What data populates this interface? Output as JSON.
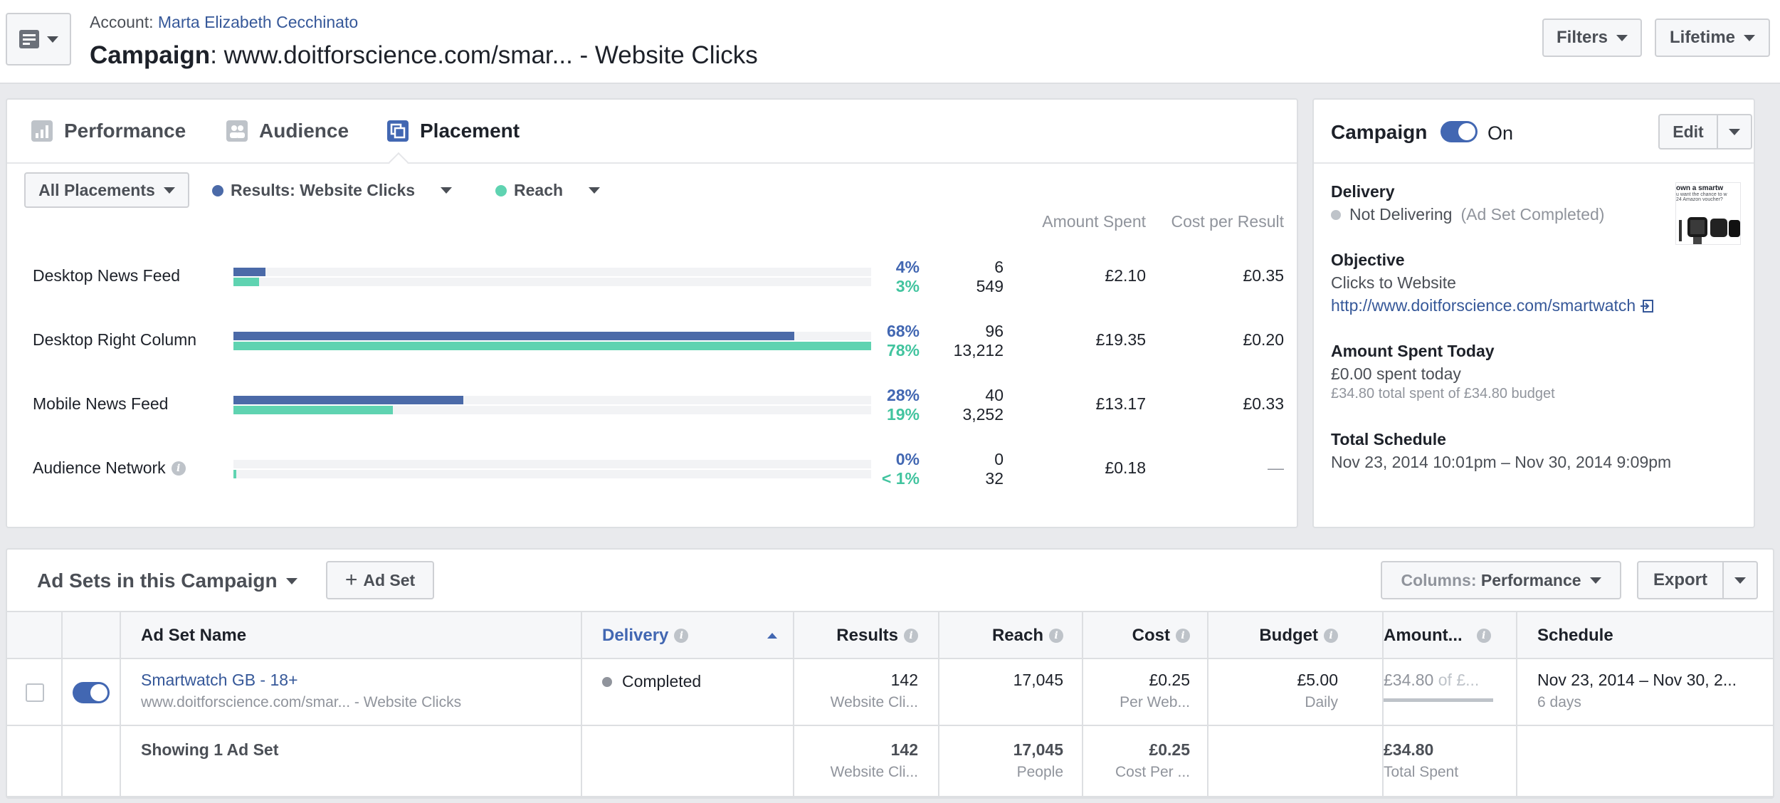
{
  "header": {
    "account_prefix": "Account: ",
    "account_name": "Marta Elizabeth Cecchinato",
    "campaign_prefix": "Campaign",
    "campaign_name": ": www.doitforscience.com/smar... - Website Clicks",
    "filters_label": "Filters",
    "lifetime_label": "Lifetime"
  },
  "tabs": [
    {
      "label": "Performance"
    },
    {
      "label": "Audience"
    },
    {
      "label": "Placement"
    }
  ],
  "placement": {
    "all_placements_label": "All Placements",
    "results_legend": "Results: Website Clicks",
    "reach_legend": "Reach",
    "col_amount_spent": "Amount Spent",
    "col_cost_per_result": "Cost per Result",
    "colors": {
      "results": "#4b6aa8",
      "reach": "#5fd3b1"
    },
    "rows": [
      {
        "label": "Desktop News Feed",
        "results_pct": "4%",
        "reach_pct": "3%",
        "results_frac": 0.05,
        "reach_frac": 0.04,
        "results": "6",
        "reach": "549",
        "amount_spent": "£2.10",
        "cost_per_result": "£0.35"
      },
      {
        "label": "Desktop Right Column",
        "results_pct": "68%",
        "reach_pct": "78%",
        "results_frac": 0.88,
        "reach_frac": 1.0,
        "results": "96",
        "reach": "13,212",
        "amount_spent": "£19.35",
        "cost_per_result": "£0.20"
      },
      {
        "label": "Mobile News Feed",
        "results_pct": "28%",
        "reach_pct": "19%",
        "results_frac": 0.36,
        "reach_frac": 0.25,
        "results": "40",
        "reach": "3,252",
        "amount_spent": "£13.17",
        "cost_per_result": "£0.33"
      },
      {
        "label": "Audience Network",
        "results_pct": "0%",
        "reach_pct": "< 1%",
        "results_frac": 0.0,
        "reach_frac": 0.004,
        "results": "0",
        "reach": "32",
        "amount_spent": "£0.18",
        "cost_per_result": "—"
      }
    ]
  },
  "sidebar": {
    "campaign_label": "Campaign",
    "toggle_state": "On",
    "edit_label": "Edit",
    "delivery_heading": "Delivery",
    "delivery_status": "Not Delivering",
    "delivery_note": "(Ad Set Completed)",
    "objective_heading": "Objective",
    "objective_value": "Clicks to Website",
    "objective_url": "http://www.doitforscience.com/smartwatch",
    "spent_today_heading": "Amount Spent Today",
    "spent_today_value": "£0.00 spent today",
    "spent_total": "£34.80 total spent of £34.80 budget",
    "schedule_heading": "Total Schedule",
    "schedule_value": "Nov 23, 2014 10:01pm – Nov 30, 2014 9:09pm",
    "thumb_text_1": "own a smartw",
    "thumb_text_2": "u want the chance to w",
    "thumb_text_3": "24 Amazon voucher?"
  },
  "adsets": {
    "title": "Ad Sets in this Campaign",
    "add_label": "Ad Set",
    "columns_prefix": "Columns: ",
    "columns_value": "Performance",
    "export_label": "Export",
    "headers": {
      "name": "Ad Set Name",
      "delivery": "Delivery",
      "results": "Results",
      "reach": "Reach",
      "cost": "Cost",
      "budget": "Budget",
      "amount": "Amount...",
      "schedule": "Schedule"
    },
    "row": {
      "name": "Smartwatch GB - 18+",
      "campaign": "www.doitforscience.com/smar... - Website Clicks",
      "delivery": "Completed",
      "results": "142",
      "results_sub": "Website Cli...",
      "reach": "17,045",
      "cost": "£0.25",
      "cost_sub": "Per Web...",
      "budget": "£5.00",
      "budget_sub": "Daily",
      "amount": "£34.80",
      "amount_of": " of £...",
      "amount_frac": 1.0,
      "schedule": "Nov 23, 2014 – Nov 30, 2...",
      "schedule_sub": "6 days"
    },
    "summary": {
      "label": "Showing 1 Ad Set",
      "results": "142",
      "results_sub": "Website Cli...",
      "reach": "17,045",
      "reach_sub": "People",
      "cost": "£0.25",
      "cost_sub": "Cost Per ...",
      "amount": "£34.80",
      "amount_sub": "Total Spent"
    }
  }
}
